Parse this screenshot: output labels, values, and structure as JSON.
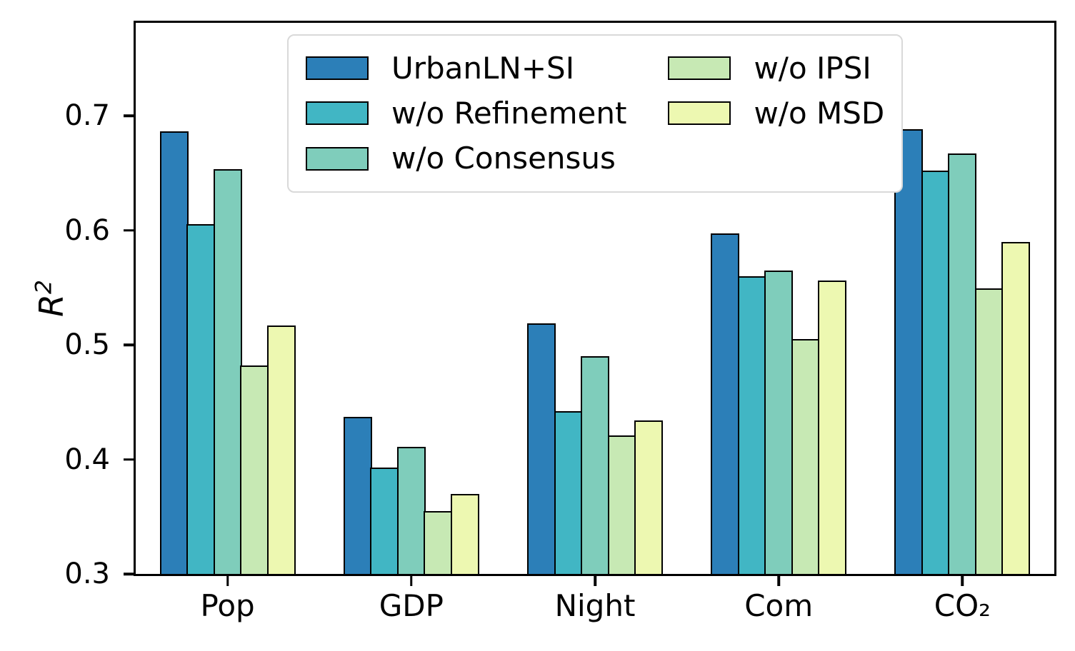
{
  "figure": {
    "background": "#ffffff"
  },
  "axes": {
    "ylabel_base": "R",
    "ylabel_exponent": "2",
    "ytick_labels": [
      "0.3",
      "0.4",
      "0.5",
      "0.6",
      "0.7"
    ],
    "spine_color": "#000000"
  },
  "legend": {
    "position": "upper center",
    "columns": 2,
    "rows_per_column": 3,
    "border_color": "#d9d9d9"
  },
  "chart_data": {
    "type": "bar",
    "title": "",
    "xlabel": "",
    "ylabel": "R²",
    "categories": [
      "Pop",
      "GDP",
      "Night",
      "Com",
      "CO₂"
    ],
    "series": [
      {
        "name": "UrbanLN+SI",
        "color": "#2c7fb8",
        "values": [
          0.686,
          0.437,
          0.519,
          0.597,
          0.688
        ]
      },
      {
        "name": "w/o Refinement",
        "color": "#41b6c4",
        "values": [
          0.605,
          0.393,
          0.442,
          0.56,
          0.652
        ]
      },
      {
        "name": "w/o Consensus",
        "color": "#7fcdbb",
        "values": [
          0.653,
          0.411,
          0.49,
          0.565,
          0.667
        ]
      },
      {
        "name": "w/o IPSI",
        "color": "#c7e9b4",
        "values": [
          0.482,
          0.355,
          0.421,
          0.505,
          0.549
        ]
      },
      {
        "name": "w/o MSD",
        "color": "#edf8b1",
        "values": [
          0.517,
          0.37,
          0.434,
          0.556,
          0.59
        ]
      }
    ],
    "yticks": [
      0.3,
      0.4,
      0.5,
      0.6,
      0.7
    ],
    "ylim": [
      0.3,
      0.781
    ],
    "grid": false,
    "bar_edge_color": "#000000",
    "legend_position": "upper center"
  }
}
